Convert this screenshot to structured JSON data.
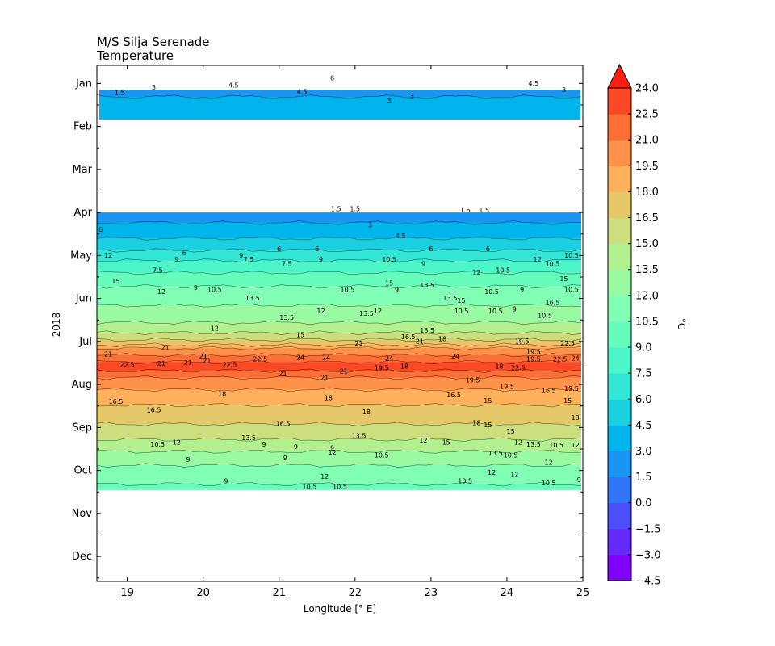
{
  "chart_data": {
    "type": "heatmap",
    "title_lines": [
      "M/S Silja Serenade",
      "Temperature"
    ],
    "xlabel": "Longitude [° E]",
    "ylabel": "2018",
    "xlim": [
      18.6,
      25.0
    ],
    "xticks": [
      19,
      20,
      21,
      22,
      23,
      24,
      25
    ],
    "xtick_labels": [
      "19",
      "20",
      "21",
      "22",
      "23",
      "24",
      "25"
    ],
    "ylim": [
      0,
      12
    ],
    "y_categories": [
      "Jan",
      "Feb",
      "Mar",
      "Apr",
      "May",
      "Jun",
      "Jul",
      "Aug",
      "Sep",
      "Oct",
      "Nov",
      "Dec"
    ],
    "colorbar": {
      "label": "°C",
      "levels": [
        -4.5,
        -3.0,
        -1.5,
        0.0,
        1.5,
        3.0,
        4.5,
        6.0,
        7.5,
        9.0,
        10.5,
        12.0,
        13.5,
        15.0,
        16.5,
        18.0,
        19.5,
        21.0,
        22.5,
        24.0
      ],
      "tick_labels": [
        "−4.5",
        "−3.0",
        "−1.5",
        "0.0",
        "1.5",
        "3.0",
        "4.5",
        "6.0",
        "7.5",
        "9.0",
        "10.5",
        "12.0",
        "13.5",
        "15.0",
        "16.5",
        "18.0",
        "19.5",
        "21.0",
        "22.5",
        "24.0"
      ],
      "colors": [
        "#7f00ff",
        "#6629fe",
        "#4c50fc",
        "#3176f8",
        "#1996f3",
        "#00b5eb",
        "#1ad0e1",
        "#33e6d6",
        "#4cf6c9",
        "#66fdbc",
        "#80feb3",
        "#9afaa2",
        "#b3f190",
        "#ccde7d",
        "#e6c86b",
        "#ffb05a",
        "#ff9148",
        "#ff6e37",
        "#ff4825",
        "#ff1f12"
      ],
      "extend": "max"
    },
    "data_periods": [
      {
        "name": "January",
        "start_month": 0.15,
        "end_month": 0.83
      },
      {
        "name": "April-October",
        "start_month": 3.0,
        "end_month": 9.45
      }
    ],
    "temperature_profile": [
      {
        "month": 0.15,
        "temp": 2.5
      },
      {
        "month": 0.5,
        "temp": 3.6
      },
      {
        "month": 0.83,
        "temp": 3.0
      },
      {
        "month": 3.0,
        "temp": 1.8
      },
      {
        "month": 3.3,
        "temp": 3.2
      },
      {
        "month": 3.6,
        "temp": 4.5
      },
      {
        "month": 3.9,
        "temp": 6.2
      },
      {
        "month": 4.2,
        "temp": 8.0
      },
      {
        "month": 4.5,
        "temp": 9.5
      },
      {
        "month": 4.8,
        "temp": 10.8
      },
      {
        "month": 5.1,
        "temp": 11.8
      },
      {
        "month": 5.4,
        "temp": 12.6
      },
      {
        "month": 5.7,
        "temp": 14.2
      },
      {
        "month": 6.0,
        "temp": 17.0
      },
      {
        "month": 6.2,
        "temp": 19.8
      },
      {
        "month": 6.4,
        "temp": 22.0
      },
      {
        "month": 6.55,
        "temp": 23.2
      },
      {
        "month": 6.7,
        "temp": 22.4
      },
      {
        "month": 6.85,
        "temp": 21.0
      },
      {
        "month": 7.0,
        "temp": 20.0
      },
      {
        "month": 7.2,
        "temp": 19.2
      },
      {
        "month": 7.4,
        "temp": 18.4
      },
      {
        "month": 7.6,
        "temp": 17.6
      },
      {
        "month": 7.8,
        "temp": 16.9
      },
      {
        "month": 8.0,
        "temp": 16.2
      },
      {
        "month": 8.2,
        "temp": 15.4
      },
      {
        "month": 8.4,
        "temp": 14.3
      },
      {
        "month": 8.6,
        "temp": 13.3
      },
      {
        "month": 8.8,
        "temp": 12.3
      },
      {
        "month": 9.0,
        "temp": 11.6
      },
      {
        "month": 9.2,
        "temp": 11.0
      },
      {
        "month": 9.45,
        "temp": 10.0
      }
    ],
    "contour_labels": [
      {
        "text": "1.5",
        "lon": 18.9,
        "month": 0.22
      },
      {
        "text": "3",
        "lon": 19.35,
        "month": 0.1
      },
      {
        "text": "4.5",
        "lon": 20.4,
        "month": 0.05
      },
      {
        "text": "6",
        "lon": 21.7,
        "month": -0.12
      },
      {
        "text": "4.5",
        "lon": 21.3,
        "month": 0.2
      },
      {
        "text": "3",
        "lon": 22.45,
        "month": 0.4
      },
      {
        "text": "3",
        "lon": 22.75,
        "month": 0.3
      },
      {
        "text": "4.5",
        "lon": 24.35,
        "month": 0.0
      },
      {
        "text": "3",
        "lon": 24.75,
        "month": 0.15
      },
      {
        "text": "1.5",
        "lon": 21.75,
        "month": 2.92
      },
      {
        "text": "1.5",
        "lon": 22.0,
        "month": 2.92
      },
      {
        "text": "1.5",
        "lon": 23.45,
        "month": 2.95
      },
      {
        "text": "1.5",
        "lon": 23.7,
        "month": 2.95
      },
      {
        "text": "3",
        "lon": 22.2,
        "month": 3.3
      },
      {
        "text": "4.5",
        "lon": 22.6,
        "month": 3.55
      },
      {
        "text": "6",
        "lon": 18.65,
        "month": 3.4
      },
      {
        "text": "6",
        "lon": 19.75,
        "month": 3.95
      },
      {
        "text": "6",
        "lon": 21.0,
        "month": 3.85
      },
      {
        "text": "6",
        "lon": 21.5,
        "month": 3.85
      },
      {
        "text": "6",
        "lon": 23.0,
        "month": 3.85
      },
      {
        "text": "6",
        "lon": 23.75,
        "month": 3.85
      },
      {
        "text": "9",
        "lon": 19.65,
        "month": 4.1
      },
      {
        "text": "9",
        "lon": 20.5,
        "month": 4.0
      },
      {
        "text": "7.5",
        "lon": 20.6,
        "month": 4.1
      },
      {
        "text": "9",
        "lon": 21.55,
        "month": 4.1
      },
      {
        "text": "10.5",
        "lon": 22.45,
        "month": 4.1
      },
      {
        "text": "9",
        "lon": 22.9,
        "month": 4.2
      },
      {
        "text": "12",
        "lon": 18.75,
        "month": 4.0
      },
      {
        "text": "7.5",
        "lon": 19.4,
        "month": 4.35
      },
      {
        "text": "7.5",
        "lon": 21.1,
        "month": 4.2
      },
      {
        "text": "12",
        "lon": 23.6,
        "month": 4.4
      },
      {
        "text": "10.5",
        "lon": 23.95,
        "month": 4.35
      },
      {
        "text": "12",
        "lon": 24.4,
        "month": 4.1
      },
      {
        "text": "10.5",
        "lon": 24.6,
        "month": 4.2
      },
      {
        "text": "10.5",
        "lon": 24.85,
        "month": 4.0
      },
      {
        "text": "15",
        "lon": 18.85,
        "month": 4.6
      },
      {
        "text": "9",
        "lon": 19.9,
        "month": 4.75
      },
      {
        "text": "10.5",
        "lon": 20.15,
        "month": 4.8
      },
      {
        "text": "12",
        "lon": 19.45,
        "month": 4.85
      },
      {
        "text": "15",
        "lon": 22.45,
        "month": 4.65
      },
      {
        "text": "13.5",
        "lon": 22.95,
        "month": 4.7
      },
      {
        "text": "15",
        "lon": 24.75,
        "month": 4.55
      },
      {
        "text": "10.5",
        "lon": 21.9,
        "month": 4.8
      },
      {
        "text": "9",
        "lon": 22.55,
        "month": 4.8
      },
      {
        "text": "10.5",
        "lon": 23.8,
        "month": 4.85
      },
      {
        "text": "9",
        "lon": 24.2,
        "month": 4.8
      },
      {
        "text": "10.5",
        "lon": 24.85,
        "month": 4.8
      },
      {
        "text": "13.5",
        "lon": 20.65,
        "month": 5.0
      },
      {
        "text": "13.5",
        "lon": 23.25,
        "month": 5.0
      },
      {
        "text": "15",
        "lon": 23.4,
        "month": 5.05
      },
      {
        "text": "12",
        "lon": 21.55,
        "month": 5.3
      },
      {
        "text": "13.5",
        "lon": 22.15,
        "month": 5.35
      },
      {
        "text": "12",
        "lon": 22.3,
        "month": 5.3
      },
      {
        "text": "10.5",
        "lon": 23.4,
        "month": 5.3
      },
      {
        "text": "10.5",
        "lon": 23.85,
        "month": 5.3
      },
      {
        "text": "9",
        "lon": 24.1,
        "month": 5.25
      },
      {
        "text": "16.5",
        "lon": 24.6,
        "month": 5.1
      },
      {
        "text": "10.5",
        "lon": 24.5,
        "month": 5.4
      },
      {
        "text": "13.5",
        "lon": 21.1,
        "month": 5.45
      },
      {
        "text": "12",
        "lon": 20.15,
        "month": 5.7
      },
      {
        "text": "15",
        "lon": 21.28,
        "month": 5.85
      },
      {
        "text": "13.5",
        "lon": 22.95,
        "month": 5.75
      },
      {
        "text": "16.5",
        "lon": 22.7,
        "month": 5.9
      },
      {
        "text": "21",
        "lon": 22.85,
        "month": 6.0
      },
      {
        "text": "18",
        "lon": 23.15,
        "month": 5.95
      },
      {
        "text": "21",
        "lon": 22.05,
        "month": 6.05
      },
      {
        "text": "19.5",
        "lon": 24.2,
        "month": 6.0
      },
      {
        "text": "22.5",
        "lon": 24.8,
        "month": 6.05
      },
      {
        "text": "21",
        "lon": 19.5,
        "month": 6.15
      },
      {
        "text": "21",
        "lon": 18.75,
        "month": 6.3
      },
      {
        "text": "21",
        "lon": 20.0,
        "month": 6.35
      },
      {
        "text": "21",
        "lon": 20.05,
        "month": 6.45
      },
      {
        "text": "22.5",
        "lon": 20.75,
        "month": 6.42
      },
      {
        "text": "24",
        "lon": 21.28,
        "month": 6.38
      },
      {
        "text": "24",
        "lon": 21.62,
        "month": 6.38
      },
      {
        "text": "24",
        "lon": 22.45,
        "month": 6.4
      },
      {
        "text": "24",
        "lon": 23.32,
        "month": 6.35
      },
      {
        "text": "22.5",
        "lon": 24.7,
        "month": 6.42
      },
      {
        "text": "24",
        "lon": 24.9,
        "month": 6.4
      },
      {
        "text": "19.5",
        "lon": 24.35,
        "month": 6.25
      },
      {
        "text": "19.5",
        "lon": 24.35,
        "month": 6.42
      },
      {
        "text": "22.5",
        "lon": 19.0,
        "month": 6.55
      },
      {
        "text": "21",
        "lon": 19.45,
        "month": 6.52
      },
      {
        "text": "21",
        "lon": 19.8,
        "month": 6.5
      },
      {
        "text": "22.5",
        "lon": 20.35,
        "month": 6.55
      },
      {
        "text": "19.5",
        "lon": 22.35,
        "month": 6.62
      },
      {
        "text": "18",
        "lon": 22.65,
        "month": 6.58
      },
      {
        "text": "21",
        "lon": 21.85,
        "month": 6.7
      },
      {
        "text": "18",
        "lon": 23.9,
        "month": 6.58
      },
      {
        "text": "22.5",
        "lon": 24.15,
        "month": 6.62
      },
      {
        "text": "21",
        "lon": 21.05,
        "month": 6.75
      },
      {
        "text": "21",
        "lon": 21.6,
        "month": 6.85
      },
      {
        "text": "19.5",
        "lon": 23.55,
        "month": 6.9
      },
      {
        "text": "19.5",
        "lon": 24.0,
        "month": 7.05
      },
      {
        "text": "16.5",
        "lon": 23.3,
        "month": 7.25
      },
      {
        "text": "15",
        "lon": 23.75,
        "month": 7.38
      },
      {
        "text": "16.5",
        "lon": 24.55,
        "month": 7.15
      },
      {
        "text": "19.5",
        "lon": 24.85,
        "month": 7.1
      },
      {
        "text": "15",
        "lon": 24.8,
        "month": 7.38
      },
      {
        "text": "18",
        "lon": 20.25,
        "month": 7.22
      },
      {
        "text": "18",
        "lon": 21.65,
        "month": 7.32
      },
      {
        "text": "16.5",
        "lon": 18.85,
        "month": 7.4
      },
      {
        "text": "16.5",
        "lon": 19.35,
        "month": 7.6
      },
      {
        "text": "18",
        "lon": 22.15,
        "month": 7.65
      },
      {
        "text": "18",
        "lon": 24.9,
        "month": 7.78
      },
      {
        "text": "16.5",
        "lon": 21.05,
        "month": 7.92
      },
      {
        "text": "18",
        "lon": 23.6,
        "month": 7.9
      },
      {
        "text": "15",
        "lon": 23.75,
        "month": 7.95
      },
      {
        "text": "15",
        "lon": 24.05,
        "month": 8.1
      },
      {
        "text": "13.5",
        "lon": 22.05,
        "month": 8.2
      },
      {
        "text": "13.5",
        "lon": 20.6,
        "month": 8.25
      },
      {
        "text": "12",
        "lon": 22.9,
        "month": 8.3
      },
      {
        "text": "15",
        "lon": 23.2,
        "month": 8.35
      },
      {
        "text": "12",
        "lon": 24.15,
        "month": 8.35
      },
      {
        "text": "13.5",
        "lon": 24.35,
        "month": 8.4
      },
      {
        "text": "10.5",
        "lon": 24.65,
        "month": 8.42
      },
      {
        "text": "12",
        "lon": 24.9,
        "month": 8.42
      },
      {
        "text": "10.5",
        "lon": 19.4,
        "month": 8.4
      },
      {
        "text": "12",
        "lon": 19.65,
        "month": 8.35
      },
      {
        "text": "9",
        "lon": 20.8,
        "month": 8.4
      },
      {
        "text": "9",
        "lon": 21.22,
        "month": 8.45
      },
      {
        "text": "9",
        "lon": 21.7,
        "month": 8.48
      },
      {
        "text": "12",
        "lon": 21.7,
        "month": 8.58
      },
      {
        "text": "10.5",
        "lon": 22.35,
        "month": 8.65
      },
      {
        "text": "10.5",
        "lon": 24.05,
        "month": 8.65
      },
      {
        "text": "13.5",
        "lon": 23.85,
        "month": 8.6
      },
      {
        "text": "9",
        "lon": 19.8,
        "month": 8.75
      },
      {
        "text": "9",
        "lon": 21.08,
        "month": 8.72
      },
      {
        "text": "12",
        "lon": 24.55,
        "month": 8.82
      },
      {
        "text": "12",
        "lon": 23.8,
        "month": 9.05
      },
      {
        "text": "12",
        "lon": 24.1,
        "month": 9.1
      },
      {
        "text": "12",
        "lon": 21.6,
        "month": 9.15
      },
      {
        "text": "9",
        "lon": 20.3,
        "month": 9.25
      },
      {
        "text": "10.5",
        "lon": 23.45,
        "month": 9.25
      },
      {
        "text": "10.5",
        "lon": 24.55,
        "month": 9.3
      },
      {
        "text": "10.5",
        "lon": 21.4,
        "month": 9.38
      },
      {
        "text": "10.5",
        "lon": 21.8,
        "month": 9.38
      },
      {
        "text": "9",
        "lon": 24.95,
        "month": 9.22
      }
    ]
  }
}
